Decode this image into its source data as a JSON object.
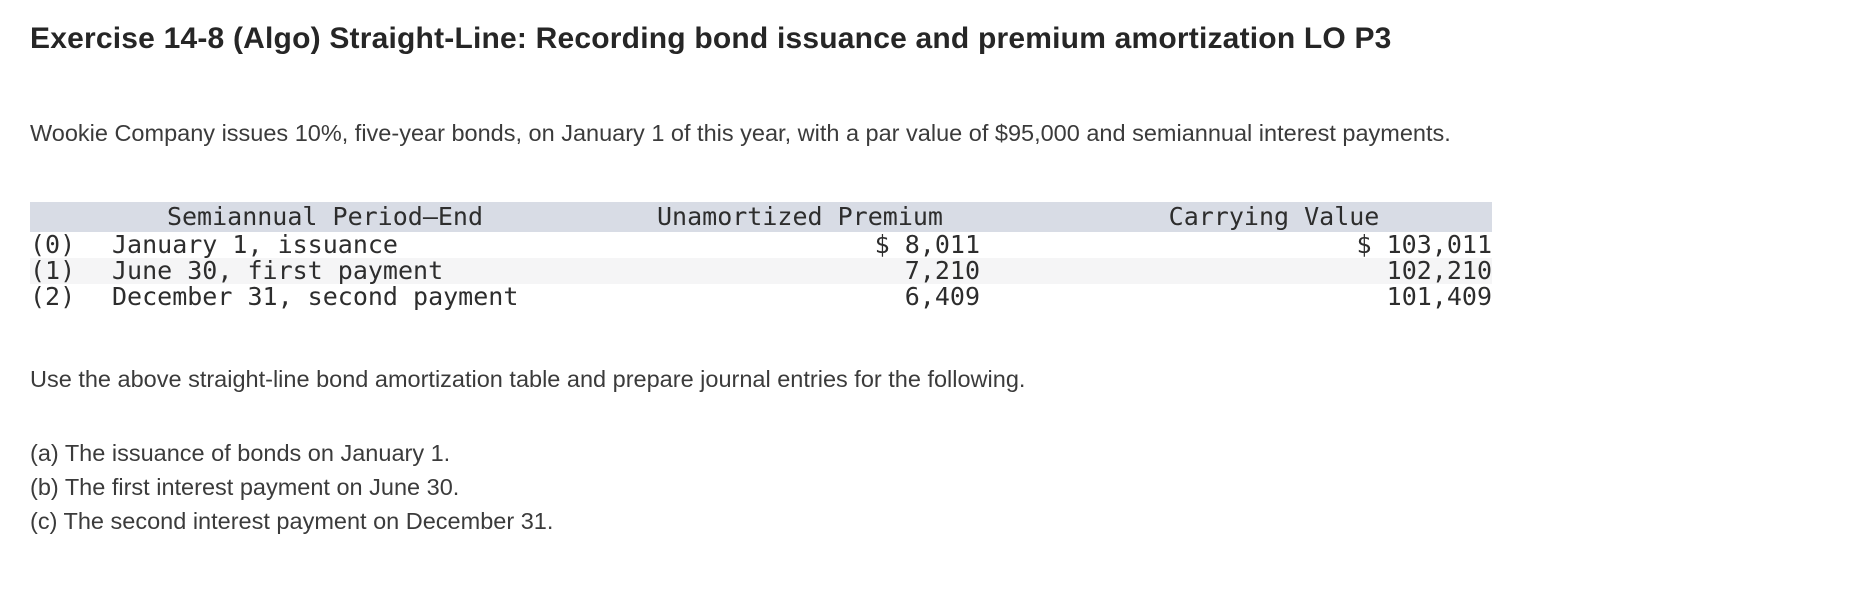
{
  "exercise": {
    "title": "Exercise 14-8 (Algo) Straight-Line: Recording bond issuance and premium amortization LO P3",
    "intro": "Wookie Company issues 10%, five-year bonds, on January 1 of this year, with a par value of $95,000 and semiannual interest payments.",
    "instruction": "Use the above straight-line bond amortization table and prepare journal entries for the following.",
    "requirements": [
      {
        "label": "(a) The issuance of bonds on January 1."
      },
      {
        "label": "(b) The first interest payment on June 30."
      },
      {
        "label": "(c) The second interest payment on December 31."
      }
    ]
  },
  "amortization_table": {
    "columns": [
      "Semiannual Period–End",
      "Unamortized Premium",
      "Carrying Value"
    ],
    "rows": [
      {
        "index": "(0)",
        "period": "January 1, issuance",
        "unamortized_premium": "$ 8,011",
        "carrying_value": "$ 103,011"
      },
      {
        "index": "(1)",
        "period": "June 30, first payment",
        "unamortized_premium": "7,210",
        "carrying_value": "102,210"
      },
      {
        "index": "(2)",
        "period": "December 31, second payment",
        "unamortized_premium": "6,409",
        "carrying_value": "101,409"
      }
    ],
    "colors": {
      "header_bg": "#d8dce5",
      "alt_row_bg": "#f5f5f6"
    }
  }
}
